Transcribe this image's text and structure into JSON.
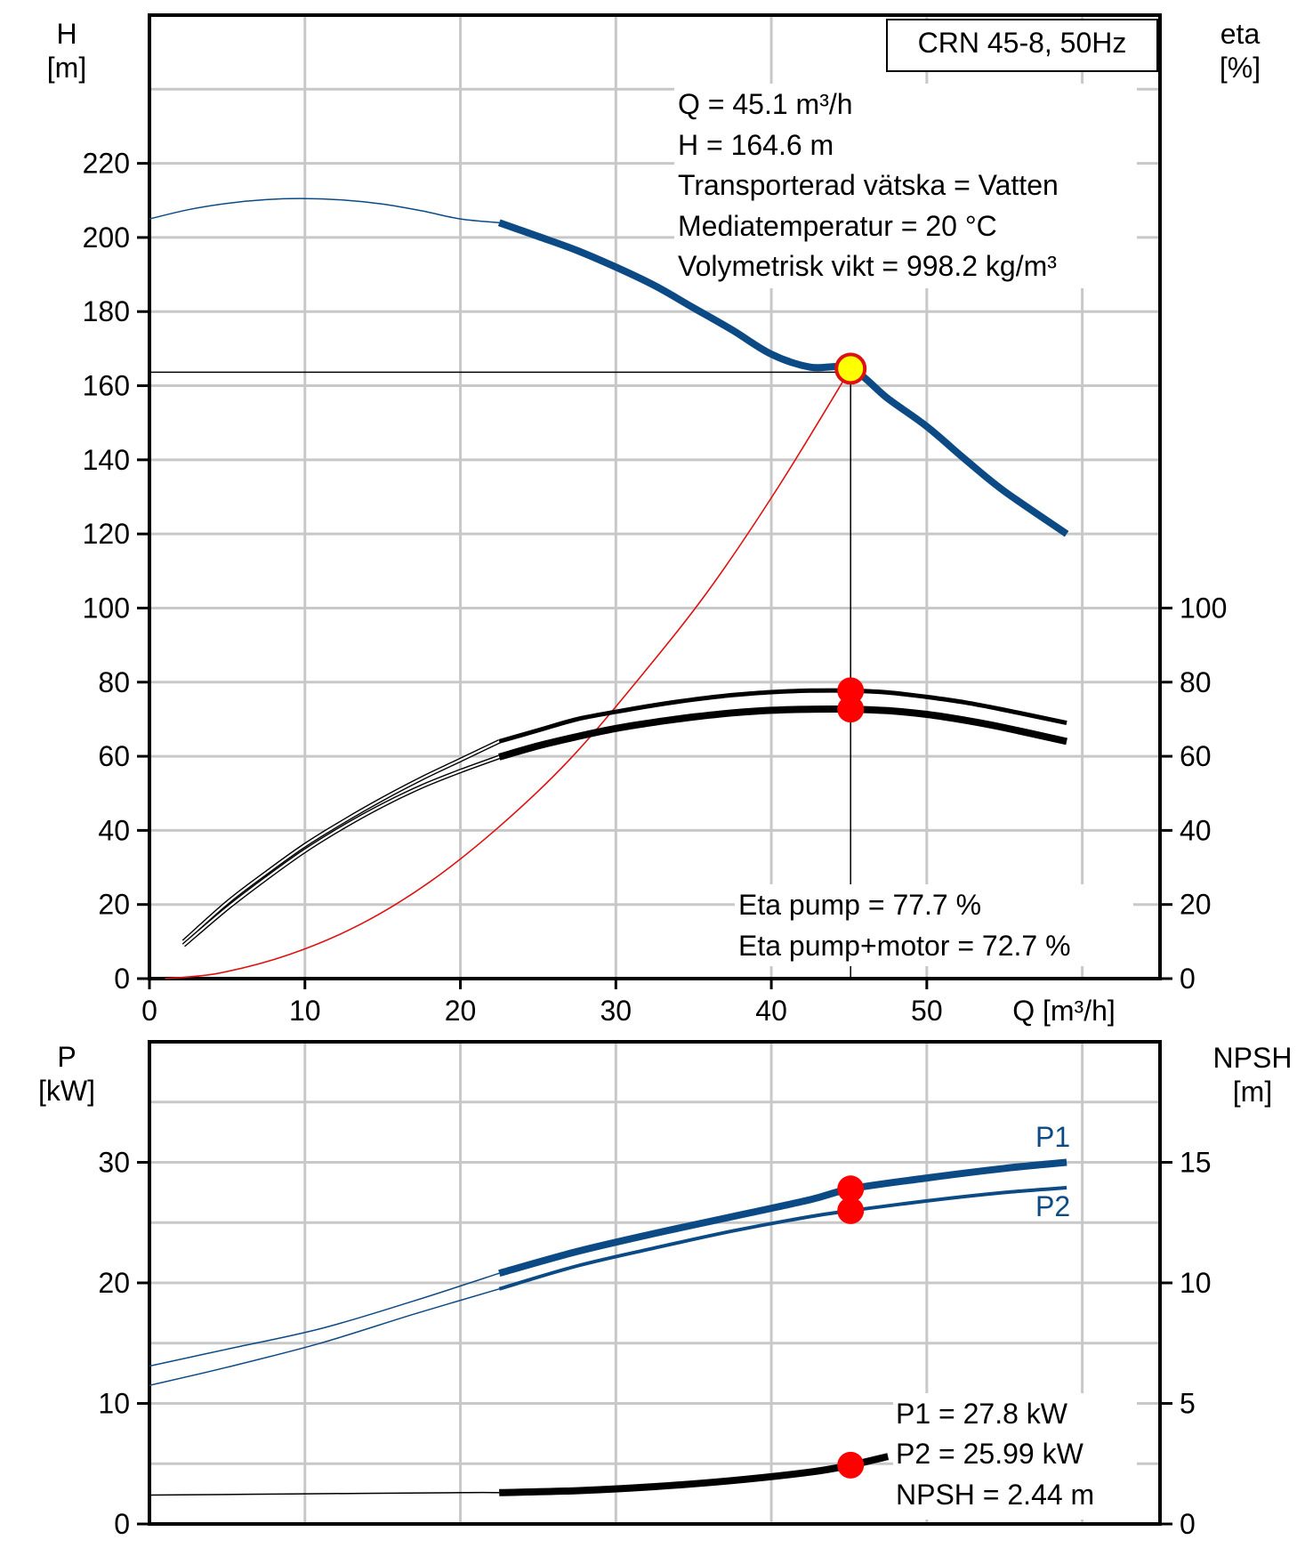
{
  "chart_data": [
    {
      "type": "line",
      "title": "CRN 45-8, 50Hz",
      "xlabel": "Q [m³/h]",
      "ylabel_left": [
        "H",
        "[m]"
      ],
      "ylabel_right": [
        "eta",
        "[%]"
      ],
      "xlim": [
        0,
        65
      ],
      "ylim_left": [
        0,
        260
      ],
      "ylim_right": [
        0,
        260
      ],
      "x_ticks": [
        0,
        10,
        20,
        30,
        40,
        50
      ],
      "x_tick_labels": [
        "0",
        "10",
        "20",
        "30",
        "40",
        "50"
      ],
      "y_left_ticks": [
        0,
        20,
        40,
        60,
        80,
        100,
        120,
        140,
        160,
        180,
        200,
        220
      ],
      "y_left_tick_labels": [
        "0",
        "20",
        "40",
        "60",
        "80",
        "100",
        "120",
        "140",
        "160",
        "180",
        "200",
        "220"
      ],
      "y_right_ticks": [
        0,
        20,
        40,
        60,
        80,
        100
      ],
      "y_right_tick_labels": [
        "0",
        "20",
        "40",
        "60",
        "80",
        "100"
      ],
      "grid": true,
      "series": [
        {
          "name": "H",
          "color": "#0b4a84",
          "operating_from_x": 22.5,
          "x": [
            0,
            2.5,
            5,
            7.5,
            10,
            12.5,
            15,
            17.5,
            20,
            22.5,
            25,
            27.5,
            30,
            32.5,
            35,
            37.5,
            40,
            42.5,
            45.1,
            47.5,
            50,
            52.5,
            55,
            59
          ],
          "y": [
            205,
            207.5,
            209.2,
            210.2,
            210.5,
            210.1,
            209,
            207.2,
            205,
            204,
            200.3,
            196.5,
            192,
            187,
            181,
            175,
            168.5,
            165,
            164.6,
            156.5,
            149,
            140,
            131.5,
            120
          ]
        },
        {
          "name": "Eta pump",
          "color": "#000000",
          "operating_from_x": 22.5,
          "x": [
            2.2,
            5,
            7.5,
            10,
            12.5,
            15,
            17.5,
            20,
            22.5,
            25,
            27.5,
            30,
            32.5,
            35,
            37.5,
            40,
            42.5,
            45.1,
            47.5,
            50,
            52.5,
            55,
            59
          ],
          "y": [
            10,
            20.5,
            28.5,
            36,
            42.5,
            48.5,
            54,
            59,
            64,
            67,
            70,
            72,
            73.8,
            75.3,
            76.5,
            77.3,
            77.7,
            77.7,
            77.2,
            76,
            74.5,
            72.5,
            69
          ]
        },
        {
          "name": "Eta pump+motor",
          "color": "#000000",
          "operating_from_x": 22.5,
          "x": [
            2.2,
            5,
            7.5,
            10,
            12.5,
            15,
            17.5,
            20,
            22.5,
            25,
            27.5,
            30,
            32.5,
            35,
            37.5,
            40,
            42.5,
            45.1,
            47.5,
            50,
            52.5,
            55,
            59
          ],
          "y": [
            9,
            19,
            27,
            34.5,
            41,
            46.8,
            51.8,
            56,
            59.8,
            62.8,
            65.3,
            67.5,
            69.2,
            70.6,
            71.7,
            72.4,
            72.7,
            72.7,
            72.3,
            71.3,
            69.7,
            67.7,
            64
          ]
        },
        {
          "name": "System curve",
          "color": "#dd1111",
          "operating_from_x": 0,
          "x": [
            1,
            4.5,
            9,
            13.5,
            18,
            22.5,
            27,
            31.5,
            36,
            40.5,
            45.1
          ],
          "y": [
            0,
            1.5,
            6.5,
            14.5,
            26,
            41,
            59,
            81,
            105,
            133,
            164.6
          ]
        }
      ],
      "operating_point": {
        "x": 45.1,
        "h": 164.6,
        "eta_pump": 77.7,
        "eta_pump_motor": 72.7
      },
      "info": [
        "Q = 45.1 m³/h",
        "H = 164.6 m",
        "Transporterad vätska = Vatten",
        "Mediatemperatur = 20 °C",
        "Volymetrisk vikt = 998.2 kg/m³"
      ],
      "eta_info": [
        "Eta pump = 77.7 %",
        "Eta pump+motor = 72.7 %"
      ]
    },
    {
      "type": "line",
      "xlim": [
        0,
        65
      ],
      "ylim_left": [
        0,
        40
      ],
      "ylim_right": [
        0,
        20
      ],
      "ylabel_left": [
        "P",
        "[kW]"
      ],
      "ylabel_right": [
        "NPSH",
        "[m]"
      ],
      "y_left_ticks": [
        0,
        10,
        20,
        30
      ],
      "y_left_tick_labels": [
        "0",
        "10",
        "20",
        "30"
      ],
      "y_right_ticks": [
        0,
        5,
        10,
        15
      ],
      "y_right_tick_labels": [
        "0",
        "5",
        "10",
        "15"
      ],
      "grid": true,
      "series": [
        {
          "name": "P1",
          "color": "#0b4a84",
          "operating_from_x": 22.5,
          "x": [
            0,
            5,
            11,
            17,
            22.5,
            27.5,
            32.5,
            37.5,
            42.5,
            45.1,
            50,
            55,
            59
          ],
          "y": [
            13.1,
            14.5,
            16.2,
            18.5,
            20.8,
            22.6,
            24.1,
            25.5,
            26.9,
            27.8,
            28.7,
            29.5,
            30
          ]
        },
        {
          "name": "P2",
          "color": "#0b4a84",
          "operating_from_x": 22.5,
          "x": [
            0,
            5,
            11,
            17,
            22.5,
            27.5,
            32.5,
            37.5,
            42.5,
            45.1,
            50,
            55,
            59
          ],
          "y": [
            11.5,
            13,
            15,
            17.4,
            19.5,
            21.4,
            22.9,
            24.3,
            25.5,
            25.99,
            26.8,
            27.5,
            27.9
          ]
        },
        {
          "name": "NPSH",
          "color": "#000000",
          "axis": "right",
          "operating_from_x": 22.5,
          "x": [
            0,
            10,
            20,
            22.5,
            27.5,
            32.5,
            37.5,
            42.5,
            45.1,
            47.5
          ],
          "y": [
            1.2,
            1.25,
            1.3,
            1.3,
            1.38,
            1.55,
            1.8,
            2.15,
            2.44,
            2.8
          ]
        }
      ],
      "operating_point": {
        "x": 45.1,
        "p1": 27.8,
        "p2": 25.99,
        "npsh": 2.44
      },
      "series_labels": {
        "p1": "P1",
        "p2": "P2"
      },
      "info": [
        "P1 = 27.8 kW",
        "P2 = 25.99 kW",
        "NPSH = 2.44 m"
      ]
    }
  ]
}
